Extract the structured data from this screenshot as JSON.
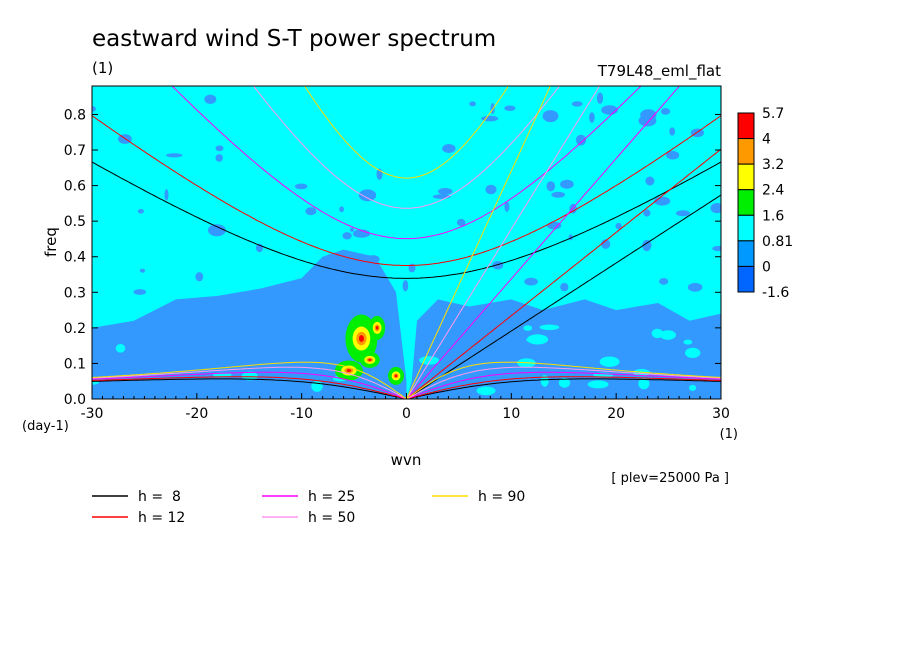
{
  "chart_data": {
    "type": "heatmap",
    "title": "eastward wind S-T power spectrum",
    "title_units": "(1)",
    "run_name": "T79L48_eml_flat",
    "xlabel": "wvn",
    "ylabel": "freq",
    "x_units": "(1)",
    "y_units": "(day-1)",
    "xlim": [
      -30,
      30
    ],
    "ylim": [
      0,
      0.88
    ],
    "x_ticks": [
      "-30",
      "-20",
      "-10",
      "0",
      "10",
      "20",
      "30"
    ],
    "y_ticks": [
      "0.0",
      "0.1",
      "0.2",
      "0.3",
      "0.4",
      "0.5",
      "0.6",
      "0.7",
      "0.8"
    ],
    "colorbar": {
      "levels": [
        "5.7",
        "4",
        "3.2",
        "2.4",
        "1.6",
        "0.81",
        "0",
        "-1.6"
      ],
      "colors": [
        "#ff0000",
        "#ff9900",
        "#ffff00",
        "#00ee00",
        "#00ffff",
        "#0099ff",
        "#0066ff"
      ]
    },
    "colors": {
      "background_field": "#00ffff",
      "low_field": "#3399ff"
    },
    "dispersion_curves": [
      {
        "label": "h =  8",
        "h": 8,
        "color": "#000000"
      },
      {
        "label": "h = 12",
        "h": 12,
        "color": "#ff0000"
      },
      {
        "label": "h = 25",
        "h": 25,
        "color": "#ff00ff"
      },
      {
        "label": "h = 50",
        "h": 50,
        "color": "#ff99ee"
      },
      {
        "label": "h = 90",
        "h": 90,
        "color": "#ffdd00"
      }
    ],
    "footnote": "[ plev=25000 Pa ]"
  }
}
